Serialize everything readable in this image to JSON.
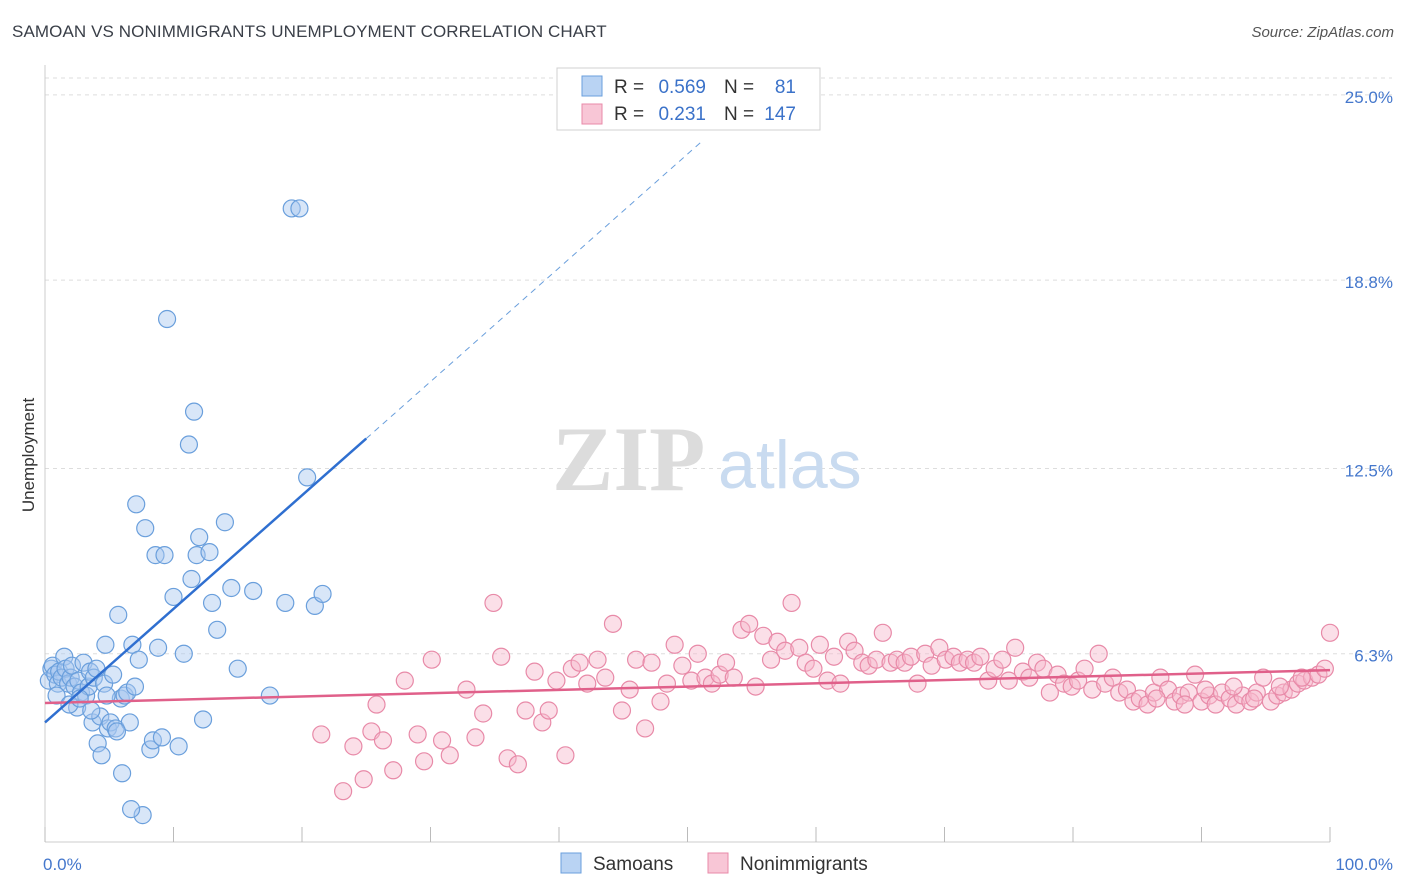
{
  "title": "SAMOAN VS NONIMMIGRANTS UNEMPLOYMENT CORRELATION CHART",
  "source": "Source: ZipAtlas.com",
  "watermark": {
    "zip": "ZIP",
    "atlas": "atlas"
  },
  "legend": {
    "rows": [
      {
        "r_label": "R =",
        "r_value": "0.569",
        "n_label": "N =",
        "n_value": "81"
      },
      {
        "r_label": "R =",
        "r_value": "0.231",
        "n_label": "N =",
        "n_value": "147"
      }
    ]
  },
  "bottom_legend": [
    "Samoans",
    "Nonimmigrants"
  ],
  "colors": {
    "samoans_fill": "#a8c8f0",
    "samoans_stroke": "#6a9fdc",
    "samoans_line": "#2f6fd0",
    "nonimm_fill": "#f6b8cc",
    "nonimm_stroke": "#e88aa8",
    "nonimm_line": "#e0608a",
    "grid": "#dddddd",
    "tick_text": "#4477cc"
  },
  "chart_data": {
    "type": "scatter",
    "xlabel": "",
    "ylabel": "Unemployment",
    "xlim": [
      0,
      100
    ],
    "ylim": [
      0,
      26
    ],
    "x_tick_labels": [
      {
        "value": 0,
        "label": "0.0%"
      },
      {
        "value": 100,
        "label": "100.0%"
      }
    ],
    "y_ticks": [
      {
        "value": 6.3,
        "label": "6.3%"
      },
      {
        "value": 12.5,
        "label": "12.5%"
      },
      {
        "value": 18.8,
        "label": "18.8%"
      },
      {
        "value": 25.0,
        "label": "25.0%"
      }
    ],
    "series": [
      {
        "name": "Samoans",
        "R": 0.569,
        "N": 81,
        "trend": {
          "x0": 0,
          "y0": 4.0,
          "x1": 25,
          "y1": 13.5,
          "dash_to_x": 51,
          "dash_to_y": 23.4
        },
        "points": [
          [
            0.3,
            5.4
          ],
          [
            0.5,
            5.8
          ],
          [
            0.6,
            5.9
          ],
          [
            0.8,
            5.6
          ],
          [
            1.0,
            5.3
          ],
          [
            1.1,
            5.7
          ],
          [
            1.3,
            5.5
          ],
          [
            1.5,
            6.2
          ],
          [
            1.6,
            5.8
          ],
          [
            1.8,
            5.3
          ],
          [
            2.0,
            5.5
          ],
          [
            2.1,
            5.9
          ],
          [
            2.3,
            5.2
          ],
          [
            2.5,
            4.5
          ],
          [
            2.6,
            5.4
          ],
          [
            2.8,
            5.0
          ],
          [
            3.0,
            6.0
          ],
          [
            3.2,
            4.9
          ],
          [
            3.4,
            5.2
          ],
          [
            3.5,
            5.7
          ],
          [
            3.7,
            4.0
          ],
          [
            3.8,
            5.5
          ],
          [
            4.0,
            5.8
          ],
          [
            4.1,
            3.3
          ],
          [
            4.3,
            4.2
          ],
          [
            4.4,
            2.9
          ],
          [
            4.6,
            5.3
          ],
          [
            4.7,
            6.6
          ],
          [
            4.9,
            3.8
          ],
          [
            5.1,
            4.0
          ],
          [
            5.3,
            5.6
          ],
          [
            5.5,
            3.8
          ],
          [
            5.7,
            7.6
          ],
          [
            5.9,
            4.8
          ],
          [
            6.0,
            2.3
          ],
          [
            6.2,
            4.9
          ],
          [
            6.4,
            5.0
          ],
          [
            6.6,
            4.0
          ],
          [
            6.8,
            6.6
          ],
          [
            7.0,
            5.2
          ],
          [
            7.1,
            11.3
          ],
          [
            7.3,
            6.1
          ],
          [
            7.6,
            0.9
          ],
          [
            7.8,
            10.5
          ],
          [
            6.7,
            1.1
          ],
          [
            8.2,
            3.1
          ],
          [
            8.4,
            3.4
          ],
          [
            8.6,
            9.6
          ],
          [
            8.8,
            6.5
          ],
          [
            9.1,
            3.5
          ],
          [
            9.3,
            9.6
          ],
          [
            9.5,
            17.5
          ],
          [
            10.0,
            8.2
          ],
          [
            10.4,
            3.2
          ],
          [
            10.8,
            6.3
          ],
          [
            11.2,
            13.3
          ],
          [
            11.4,
            8.8
          ],
          [
            11.6,
            14.4
          ],
          [
            11.8,
            9.6
          ],
          [
            12.0,
            10.2
          ],
          [
            12.3,
            4.1
          ],
          [
            12.8,
            9.7
          ],
          [
            13.0,
            8.0
          ],
          [
            13.4,
            7.1
          ],
          [
            14.0,
            10.7
          ],
          [
            14.5,
            8.5
          ],
          [
            15.0,
            5.8
          ],
          [
            16.2,
            8.4
          ],
          [
            17.5,
            4.9
          ],
          [
            18.7,
            8.0
          ],
          [
            19.2,
            21.2
          ],
          [
            19.8,
            21.2
          ],
          [
            20.4,
            12.2
          ],
          [
            21.0,
            7.9
          ],
          [
            21.6,
            8.3
          ],
          [
            0.9,
            4.9
          ],
          [
            1.9,
            4.6
          ],
          [
            2.7,
            4.8
          ],
          [
            3.6,
            4.4
          ],
          [
            4.8,
            4.9
          ],
          [
            5.6,
            3.7
          ]
        ]
      },
      {
        "name": "Nonimmigrants",
        "R": 0.231,
        "N": 147,
        "trend": {
          "x0": 0,
          "y0": 4.65,
          "x1": 100,
          "y1": 5.75
        },
        "points": [
          [
            21.5,
            3.6
          ],
          [
            23.2,
            1.7
          ],
          [
            24.0,
            3.2
          ],
          [
            24.8,
            2.1
          ],
          [
            25.4,
            3.7
          ],
          [
            25.8,
            4.6
          ],
          [
            26.3,
            3.4
          ],
          [
            27.1,
            2.4
          ],
          [
            28.0,
            5.4
          ],
          [
            29.0,
            3.6
          ],
          [
            29.5,
            2.7
          ],
          [
            30.1,
            6.1
          ],
          [
            30.9,
            3.4
          ],
          [
            31.5,
            2.9
          ],
          [
            32.8,
            5.1
          ],
          [
            33.5,
            3.5
          ],
          [
            34.1,
            4.3
          ],
          [
            34.9,
            8.0
          ],
          [
            35.5,
            6.2
          ],
          [
            36.0,
            2.8
          ],
          [
            36.8,
            2.6
          ],
          [
            37.4,
            4.4
          ],
          [
            38.1,
            5.7
          ],
          [
            38.7,
            4.0
          ],
          [
            39.2,
            4.4
          ],
          [
            39.8,
            5.4
          ],
          [
            40.5,
            2.9
          ],
          [
            41.0,
            5.8
          ],
          [
            41.6,
            6.0
          ],
          [
            42.2,
            5.3
          ],
          [
            43.0,
            6.1
          ],
          [
            43.6,
            5.5
          ],
          [
            44.2,
            7.3
          ],
          [
            44.9,
            4.4
          ],
          [
            45.5,
            5.1
          ],
          [
            46.0,
            6.1
          ],
          [
            46.7,
            3.8
          ],
          [
            47.2,
            6.0
          ],
          [
            47.9,
            4.7
          ],
          [
            48.4,
            5.3
          ],
          [
            49.0,
            6.6
          ],
          [
            49.6,
            5.9
          ],
          [
            50.3,
            5.4
          ],
          [
            50.8,
            6.3
          ],
          [
            51.4,
            5.5
          ],
          [
            51.9,
            5.3
          ],
          [
            52.5,
            5.6
          ],
          [
            53.0,
            6.0
          ],
          [
            53.6,
            5.5
          ],
          [
            54.2,
            7.1
          ],
          [
            54.8,
            7.3
          ],
          [
            55.3,
            5.2
          ],
          [
            55.9,
            6.9
          ],
          [
            56.5,
            6.1
          ],
          [
            57.0,
            6.7
          ],
          [
            57.6,
            6.4
          ],
          [
            58.1,
            8.0
          ],
          [
            58.7,
            6.5
          ],
          [
            59.2,
            6.0
          ],
          [
            59.8,
            5.8
          ],
          [
            60.3,
            6.6
          ],
          [
            60.9,
            5.4
          ],
          [
            61.4,
            6.2
          ],
          [
            61.9,
            5.3
          ],
          [
            62.5,
            6.7
          ],
          [
            63.0,
            6.4
          ],
          [
            63.6,
            6.0
          ],
          [
            64.1,
            5.9
          ],
          [
            64.7,
            6.1
          ],
          [
            65.2,
            7.0
          ],
          [
            65.8,
            6.0
          ],
          [
            66.3,
            6.1
          ],
          [
            66.9,
            6.0
          ],
          [
            67.4,
            6.2
          ],
          [
            67.9,
            5.3
          ],
          [
            68.5,
            6.3
          ],
          [
            69.0,
            5.9
          ],
          [
            69.6,
            6.5
          ],
          [
            70.1,
            6.1
          ],
          [
            70.7,
            6.2
          ],
          [
            71.2,
            6.0
          ],
          [
            71.8,
            6.1
          ],
          [
            72.3,
            6.0
          ],
          [
            72.8,
            6.2
          ],
          [
            73.4,
            5.4
          ],
          [
            73.9,
            5.8
          ],
          [
            74.5,
            6.1
          ],
          [
            75.0,
            5.4
          ],
          [
            75.5,
            6.5
          ],
          [
            76.1,
            5.7
          ],
          [
            76.6,
            5.5
          ],
          [
            77.2,
            6.0
          ],
          [
            77.7,
            5.8
          ],
          [
            78.2,
            5.0
          ],
          [
            78.8,
            5.6
          ],
          [
            79.3,
            5.3
          ],
          [
            79.9,
            5.2
          ],
          [
            80.4,
            5.4
          ],
          [
            80.9,
            5.8
          ],
          [
            81.5,
            5.1
          ],
          [
            82.0,
            6.3
          ],
          [
            82.5,
            5.3
          ],
          [
            83.1,
            5.5
          ],
          [
            83.6,
            5.0
          ],
          [
            84.2,
            5.1
          ],
          [
            84.7,
            4.7
          ],
          [
            85.2,
            4.8
          ],
          [
            85.8,
            4.6
          ],
          [
            86.3,
            5.0
          ],
          [
            86.8,
            5.5
          ],
          [
            87.4,
            5.1
          ],
          [
            87.9,
            4.7
          ],
          [
            88.4,
            4.9
          ],
          [
            89.0,
            5.0
          ],
          [
            89.5,
            5.6
          ],
          [
            90.0,
            4.7
          ],
          [
            90.6,
            4.9
          ],
          [
            91.1,
            4.6
          ],
          [
            91.6,
            5.0
          ],
          [
            92.2,
            4.8
          ],
          [
            92.7,
            4.6
          ],
          [
            93.2,
            4.9
          ],
          [
            93.8,
            4.7
          ],
          [
            94.3,
            5.0
          ],
          [
            94.8,
            5.5
          ],
          [
            95.4,
            4.7
          ],
          [
            95.9,
            4.9
          ],
          [
            96.4,
            5.0
          ],
          [
            97.0,
            5.1
          ],
          [
            97.5,
            5.3
          ],
          [
            98.0,
            5.4
          ],
          [
            98.6,
            5.5
          ],
          [
            99.1,
            5.6
          ],
          [
            99.6,
            5.8
          ],
          [
            100.0,
            7.0
          ],
          [
            90.3,
            5.1
          ],
          [
            92.5,
            5.2
          ],
          [
            94.1,
            4.8
          ],
          [
            96.1,
            5.2
          ],
          [
            97.8,
            5.5
          ],
          [
            86.5,
            4.8
          ],
          [
            88.7,
            4.6
          ]
        ]
      }
    ]
  }
}
